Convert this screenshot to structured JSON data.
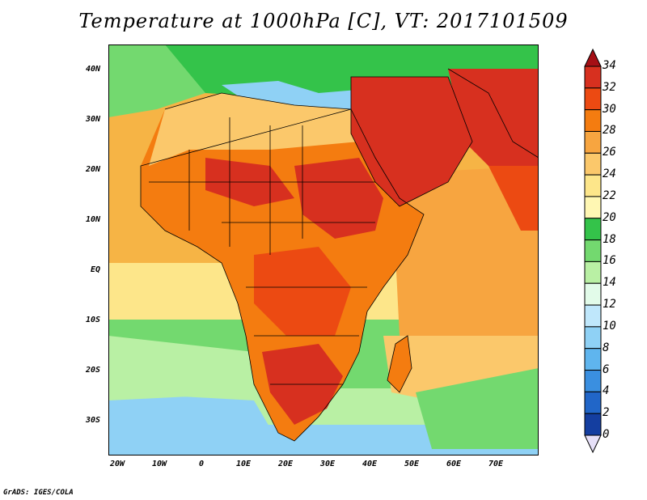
{
  "title": "Temperature at 1000hPa [C], VT: 2017101509",
  "credit": "GrADS: IGES/COLA",
  "latitude_labels": [
    "40N",
    "30N",
    "20N",
    "10N",
    "EQ",
    "10S",
    "20S",
    "30S"
  ],
  "longitude_labels": [
    "20W",
    "10W",
    "0",
    "10E",
    "20E",
    "30E",
    "40E",
    "50E",
    "60E",
    "70E"
  ],
  "colorbar": {
    "labels": [
      "34",
      "32",
      "30",
      "28",
      "26",
      "24",
      "22",
      "20",
      "18",
      "16",
      "14",
      "12",
      "10",
      "8",
      "6",
      "4",
      "2",
      "0"
    ],
    "colors": [
      "#a50f15",
      "#d7301f",
      "#ec4a12",
      "#f47c10",
      "#f7a540",
      "#fbc86b",
      "#fde68a",
      "#fff7b3",
      "#34c34a",
      "#73d96f",
      "#b9f0a4",
      "#e2fbe9",
      "#bfe7fb",
      "#8fd1f5",
      "#5fb5ee",
      "#3a8fe0",
      "#2166c8",
      "#143ea0",
      "#0a1e6e"
    ]
  },
  "map_colors": {
    "ocean_warm": "#f6b445",
    "ocean_mild": "#fde68a",
    "ocean_cool": "#73d96f",
    "ocean_cold": "#5fb5ee",
    "land_hot": "#d7301f",
    "land_warm": "#f47c10",
    "land_mild": "#fbc86b",
    "mediterranean": "#8fd1f5",
    "north_land": "#34c34a"
  }
}
